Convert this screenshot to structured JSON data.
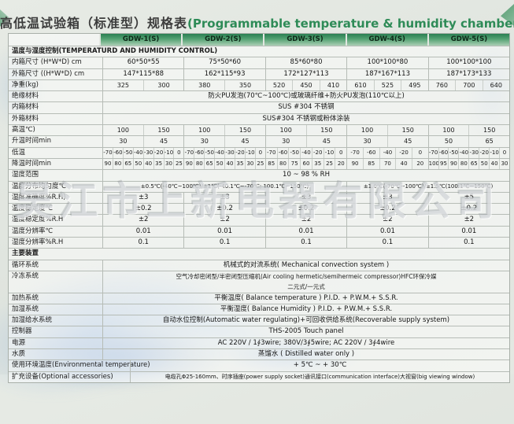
{
  "title": {
    "zh": "高低温试验箱（标准型）规格表",
    "en": "(Programmable temperature & humidity chamber)"
  },
  "watermark": "吴江市上新电器有限公司",
  "colors": {
    "accent_green": "#2e8b57",
    "header_gradient_top": "#2a7f52",
    "header_gradient_bottom": "#abceb5",
    "page_background": "#e2e7e1",
    "table_border": "#b6bcb6"
  },
  "columns": [
    "GDW-1(S)",
    "GDW-2(S)",
    "GDW-3(S)",
    "GDW-4(S)",
    "GDW-5(S)"
  ],
  "rows": [
    {
      "type": "section",
      "label": "温度与湿度控制(TEMPERATURD AND HUMIDITY CONTROL)"
    },
    {
      "type": "cols",
      "label": "内箱尺寸 (H*W*D) cm",
      "values": [
        "60*50*55",
        "75*50*60",
        "85*60*80",
        "100*100*80",
        "100*100*100"
      ]
    },
    {
      "type": "cols",
      "label": "外箱尺寸 ((H*W*D) cm",
      "values": [
        "147*115*88",
        "162*115*93",
        "172*127*113",
        "187*167*113",
        "187*173*133"
      ]
    },
    {
      "type": "sub",
      "label": "净重(kg)",
      "groups": [
        [
          "325",
          "300"
        ],
        [
          "380",
          "350"
        ],
        [
          "520",
          "450",
          "410"
        ],
        [
          "610",
          "525",
          "495"
        ],
        [
          "760",
          "700",
          "640"
        ]
      ],
      "subsize": "8px"
    },
    {
      "type": "full",
      "label": "绝缘材料",
      "value": "防火PU发泡(70℃~100℃)或玻璃纤维+防火PU发泡(110℃以上)"
    },
    {
      "type": "full",
      "label": "内箱材料",
      "value": "SUS #304 不锈钢"
    },
    {
      "type": "full",
      "label": "外箱材料",
      "value": "SUS#304 不锈钢或粉体涂装"
    },
    {
      "type": "sub",
      "label": "高温℃)",
      "groups": [
        [
          "100",
          "150"
        ],
        [
          "100",
          "150"
        ],
        [
          "100",
          "150"
        ],
        [
          "100",
          "150"
        ],
        [
          "100",
          "150"
        ]
      ],
      "subsize": "8px"
    },
    {
      "type": "sub",
      "label": "升温时间min",
      "groups": [
        [
          "30",
          "45"
        ],
        [
          "30",
          "45"
        ],
        [
          "30",
          "45"
        ],
        [
          "30",
          "45"
        ],
        [
          "50",
          "65"
        ]
      ],
      "subsize": "8px"
    },
    {
      "type": "sub",
      "label": "低温",
      "groups": [
        [
          "-70",
          "-60",
          "-50",
          "-40",
          "-30",
          "-20",
          "-10",
          "0"
        ],
        [
          "-70",
          "-60",
          "-50",
          "-40",
          "-30",
          "-20",
          "-10",
          "0"
        ],
        [
          "-70",
          "-60",
          "-50",
          "-40",
          "-20",
          "-10",
          "0"
        ],
        [
          "-70",
          "-60",
          "-40",
          "-20",
          "0"
        ],
        [
          "-70",
          "-60",
          "-50",
          "-40",
          "-30",
          "-20",
          "-10",
          "0"
        ]
      ]
    },
    {
      "type": "sub",
      "label": "降温时间min",
      "groups": [
        [
          "90",
          "80",
          "65",
          "50",
          "40",
          "35",
          "30",
          "25"
        ],
        [
          "90",
          "80",
          "65",
          "50",
          "40",
          "35",
          "30",
          "25"
        ],
        [
          "85",
          "80",
          "75",
          "60",
          "35",
          "25",
          "20"
        ],
        [
          "90",
          "85",
          "70",
          "40",
          "20"
        ],
        [
          "100",
          "95",
          "90",
          "80",
          "65",
          "50",
          "40",
          "30"
        ]
      ]
    },
    {
      "type": "full",
      "label": "湿度范围",
      "value": "10 ~ 98 % RH"
    },
    {
      "type": "span",
      "label": "温度分布均匀度℃",
      "small": true,
      "spans": [
        {
          "text": "±0.5℃(-40℃~100℃)/±1℃(-40.1℃~-70℃; 100.1℃~150℃)",
          "cols": 3
        },
        {
          "text": "±1.0℃(-70℃~100℃)/±1.5℃(100.1℃~150℃)",
          "cols": 2
        }
      ]
    },
    {
      "type": "cols",
      "label": "湿度准确度%R.H)",
      "values": [
        "±3",
        "±3",
        "±3",
        "±3",
        "±5"
      ]
    },
    {
      "type": "cols",
      "label": "温度稳定度℃",
      "values": [
        "±0.2",
        "±0.2",
        "±0.2",
        "±0.2",
        "±0.2"
      ]
    },
    {
      "type": "cols",
      "label": "湿度稳定度%R.H",
      "values": [
        "±2",
        "±2",
        "±2",
        "±2",
        "±2"
      ]
    },
    {
      "type": "cols",
      "label": "温度分辨率℃",
      "values": [
        "0.01",
        "0.01",
        "0.01",
        "0.01",
        "0.01"
      ]
    },
    {
      "type": "cols",
      "label": "湿度分辨率%R.H",
      "values": [
        "0.1",
        "0.1",
        "0.1",
        "0.1",
        "0.1"
      ]
    },
    {
      "type": "section",
      "label": "主要装置"
    },
    {
      "type": "full",
      "label": "循环系统",
      "value": "机械式的对流系统( Mechanical convection system )"
    },
    {
      "type": "full2",
      "label": "冷冻系统",
      "lines": [
        "空气冷却密闭型/半密闭型压缩机(Air cooling hermetic/semihermeic compressor)HFC环保冷媒",
        "二元式/一元式"
      ]
    },
    {
      "type": "full",
      "label": "加热系统",
      "value": "平衡温度( Balance temperature ) P.I.D. + P.W.M.+ S.S.R."
    },
    {
      "type": "full",
      "label": "加湿系统",
      "value": "平衡湿度( Balance Humidity ) P.I.D. + P.W.M.+ S.S.R."
    },
    {
      "type": "full",
      "label": "加湿给水系统",
      "value": "自动水位控制(Automatic water regulating)+可回收供给系统(Recoverable supply system)"
    },
    {
      "type": "full",
      "label": "控制器",
      "value": "THS-2005 Touch panel"
    },
    {
      "type": "full",
      "label": "电源",
      "value": "AC 220V / 1∮3wire; 380V/3∮5wire; AC 220V / 3∮4wire"
    },
    {
      "type": "full",
      "label": "水质",
      "value": "蒸馏水 ( Distilled water only )"
    },
    {
      "type": "full",
      "label": "使用环境温度(Environmental temperature)",
      "value": "+ 5℃ ~ + 30℃",
      "wide": true
    },
    {
      "type": "full",
      "label": "扩充设备(Optional accessories)",
      "value": "电缆孔Φ25-160mm、时序插座(power supply socket)通讯接口(communication interface)大视窗(big viewing window)",
      "wide": true,
      "small": true
    }
  ]
}
